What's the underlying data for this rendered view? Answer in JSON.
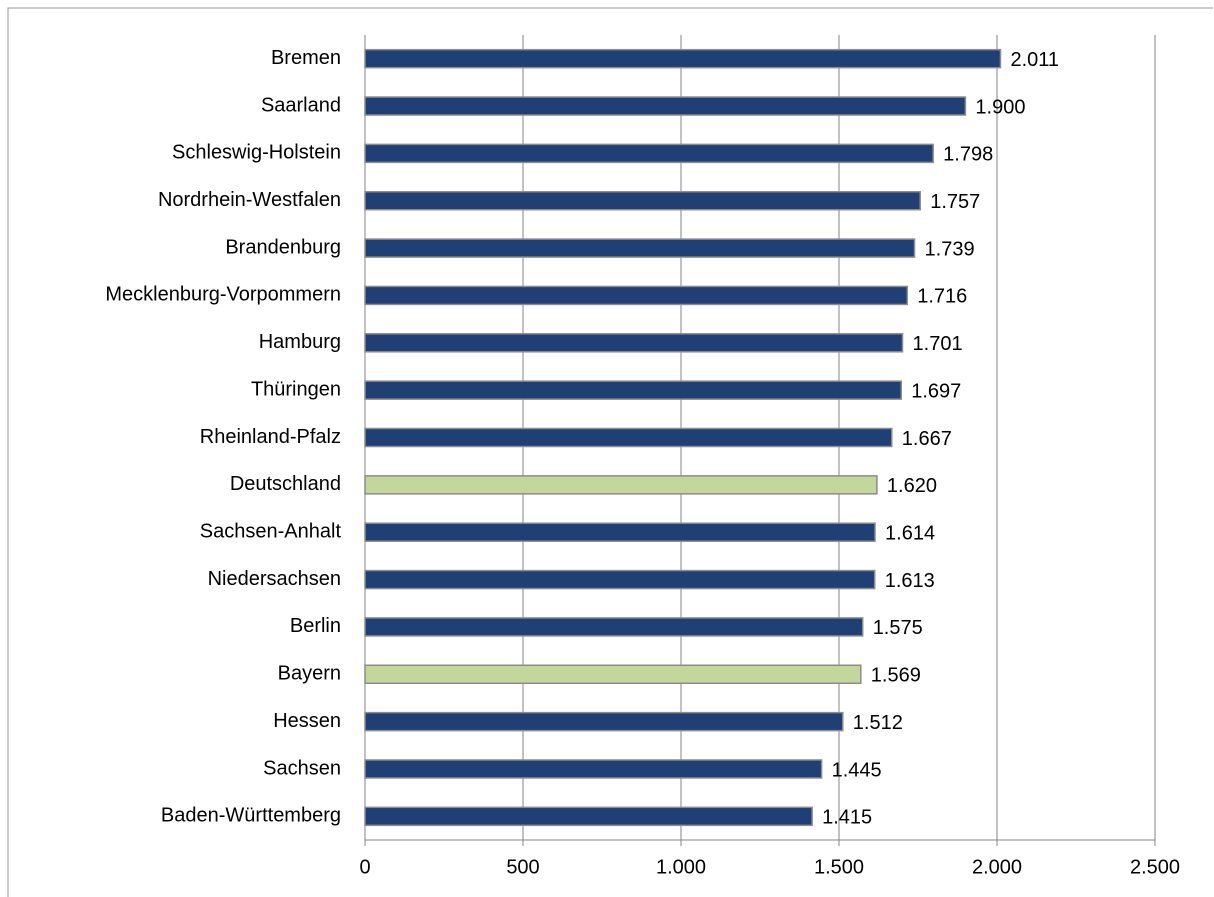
{
  "chart_data": {
    "type": "bar",
    "orientation": "horizontal",
    "categories": [
      "Bremen",
      "Saarland",
      "Schleswig-Holstein",
      "Nordrhein-Westfalen",
      "Brandenburg",
      "Mecklenburg-Vorpommern",
      "Hamburg",
      "Thüringen",
      "Rheinland-Pfalz",
      "Deutschland",
      "Sachsen-Anhalt",
      "Niedersachsen",
      "Berlin",
      "Bayern",
      "Hessen",
      "Sachsen",
      "Baden-Württemberg"
    ],
    "values": [
      2011,
      1900,
      1798,
      1757,
      1739,
      1716,
      1701,
      1697,
      1667,
      1620,
      1614,
      1613,
      1575,
      1569,
      1512,
      1445,
      1415
    ],
    "value_labels": [
      "2.011",
      "1.900",
      "1.798",
      "1.757",
      "1.739",
      "1.716",
      "1.701",
      "1.697",
      "1.667",
      "1.620",
      "1.614",
      "1.613",
      "1.575",
      "1.569",
      "1.512",
      "1.445",
      "1.415"
    ],
    "colors": [
      "#1f3f75",
      "#1f3f75",
      "#1f3f75",
      "#1f3f75",
      "#1f3f75",
      "#1f3f75",
      "#1f3f75",
      "#1f3f75",
      "#1f3f75",
      "#c3d69b",
      "#1f3f75",
      "#1f3f75",
      "#1f3f75",
      "#c3d69b",
      "#1f3f75",
      "#1f3f75",
      "#1f3f75"
    ],
    "xlim": [
      0,
      2500
    ],
    "xticks": [
      0,
      500,
      {
        "value": 1000,
        "label": "1.000"
      },
      {
        "value": 1500,
        "label": "1.500"
      },
      {
        "value": 2000,
        "label": "2.000"
      },
      {
        "value": 2500,
        "label": "2.500"
      }
    ],
    "grid": true
  }
}
